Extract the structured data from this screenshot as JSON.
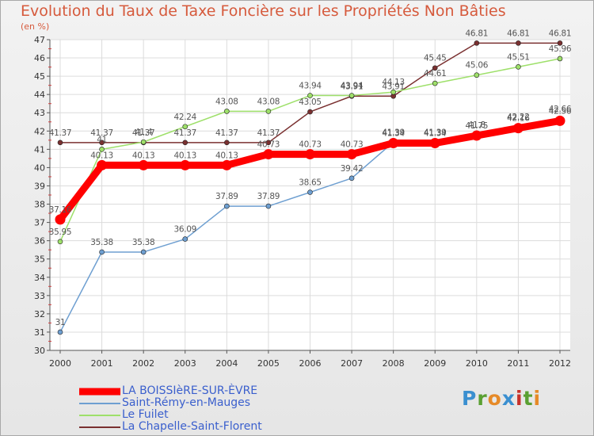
{
  "header": {
    "title": "Evolution du Taux de Taxe Foncière sur les Propriétés Non Bâties",
    "subtitle": "(en %)"
  },
  "brand": {
    "name": "Proxiti",
    "letters": [
      "P",
      "r",
      "o",
      "x",
      "i",
      "t",
      "i"
    ]
  },
  "chart_data": {
    "type": "line",
    "title": "Evolution du Taux de Taxe Foncière sur les Propriétés Non Bâties",
    "ylabel": "(en %)",
    "xlabel": "",
    "x": [
      "2000",
      "2001",
      "2002",
      "2003",
      "2004",
      "2005",
      "2006",
      "2007",
      "2008",
      "2009",
      "2010",
      "2011",
      "2012"
    ],
    "ylim": [
      30,
      47
    ],
    "yticks": [
      30,
      31,
      32,
      33,
      34,
      35,
      36,
      37,
      38,
      39,
      40,
      41,
      42,
      43,
      44,
      45,
      46,
      47
    ],
    "grid": true,
    "legend_position": "bottom-left",
    "series": [
      {
        "name": "LA BOISSIèRE-SUR-ÈVRE",
        "color": "#ff0000",
        "values": [
          37.16,
          40.13,
          40.13,
          40.13,
          40.13,
          40.73,
          40.73,
          40.73,
          41.34,
          41.34,
          41.75,
          42.16,
          42.56
        ],
        "labels": [
          "37.16",
          "40.13",
          "40.13",
          "40.13",
          "40.13",
          "40.73",
          "40.73",
          "40.73",
          "41.34",
          "41.34",
          "41.75",
          "42.16",
          "42.56"
        ]
      },
      {
        "name": "Saint-Rémy-en-Mauges",
        "color": "#6e9fd1",
        "values": [
          31,
          35.38,
          35.38,
          36.09,
          37.89,
          37.89,
          38.65,
          39.42,
          41.39,
          41.39,
          41.8,
          42.22,
          42.66
        ],
        "labels": [
          "31",
          "35.38",
          "35.38",
          "36.09",
          "37.89",
          "37.89",
          "38.65",
          "39.42",
          "41.39",
          "41.39",
          "41.8",
          "42.22",
          "42.66"
        ]
      },
      {
        "name": "Le Fuilet",
        "color": "#9ee06a",
        "values": [
          35.95,
          41,
          41.4,
          42.24,
          43.08,
          43.08,
          43.94,
          43.94,
          44.13,
          44.61,
          45.06,
          45.51,
          45.96
        ],
        "labels": [
          "35.95",
          "41",
          "41.4",
          "42.24",
          "43.08",
          "43.08",
          "43.94",
          "43.94",
          "44.13",
          "44.61",
          "45.06",
          "45.51",
          "45.96"
        ]
      },
      {
        "name": "La Chapelle-Saint-Florent",
        "color": "#7a3030",
        "values": [
          41.37,
          41.37,
          41.37,
          41.37,
          41.37,
          41.37,
          43.05,
          43.91,
          43.91,
          45.45,
          46.81,
          46.81,
          46.81
        ],
        "labels": [
          "41.37",
          "41.37",
          "41.37",
          "41.37",
          "41.37",
          "41.37",
          "43.05",
          "43.91",
          "43.91",
          "45.45",
          "46.81",
          "46.81",
          "46.81"
        ]
      }
    ]
  }
}
